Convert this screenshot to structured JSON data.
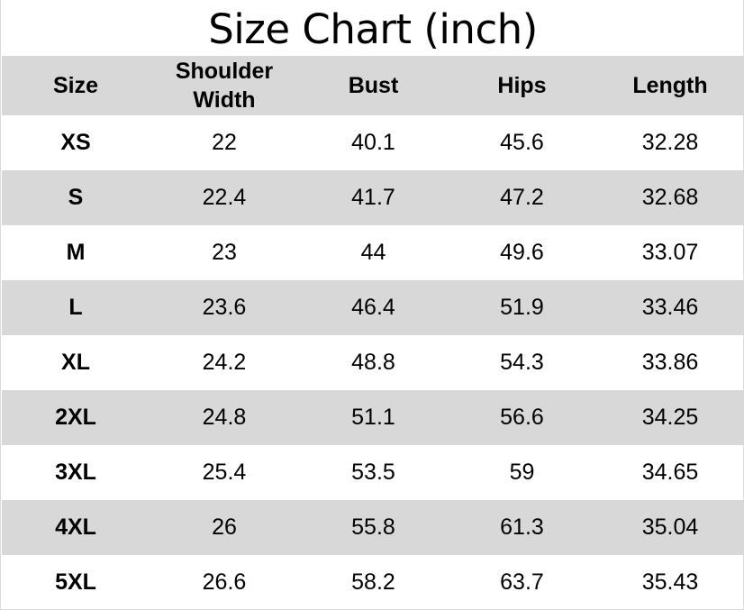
{
  "title": "Size Chart (inch)",
  "colors": {
    "header_bg": "#d8d8d8",
    "stripe_bg": "#d8d8d8",
    "row_bg": "#ffffff",
    "text": "#000000"
  },
  "headers": {
    "size": "Size",
    "shoulder_line1": "Shoulder",
    "shoulder_line2": "Width",
    "bust": "Bust",
    "hips": "Hips",
    "length": "Length"
  },
  "rows": [
    {
      "size": "XS",
      "shoulder": "22",
      "bust": "40.1",
      "hips": "45.6",
      "length": "32.28"
    },
    {
      "size": "S",
      "shoulder": "22.4",
      "bust": "41.7",
      "hips": "47.2",
      "length": "32.68"
    },
    {
      "size": "M",
      "shoulder": "23",
      "bust": "44",
      "hips": "49.6",
      "length": "33.07"
    },
    {
      "size": "L",
      "shoulder": "23.6",
      "bust": "46.4",
      "hips": "51.9",
      "length": "33.46"
    },
    {
      "size": "XL",
      "shoulder": "24.2",
      "bust": "48.8",
      "hips": "54.3",
      "length": "33.86"
    },
    {
      "size": "2XL",
      "shoulder": "24.8",
      "bust": "51.1",
      "hips": "56.6",
      "length": "34.25"
    },
    {
      "size": "3XL",
      "shoulder": "25.4",
      "bust": "53.5",
      "hips": "59",
      "length": "34.65"
    },
    {
      "size": "4XL",
      "shoulder": "26",
      "bust": "55.8",
      "hips": "61.3",
      "length": "35.04"
    },
    {
      "size": "5XL",
      "shoulder": "26.6",
      "bust": "58.2",
      "hips": "63.7",
      "length": "35.43"
    }
  ]
}
